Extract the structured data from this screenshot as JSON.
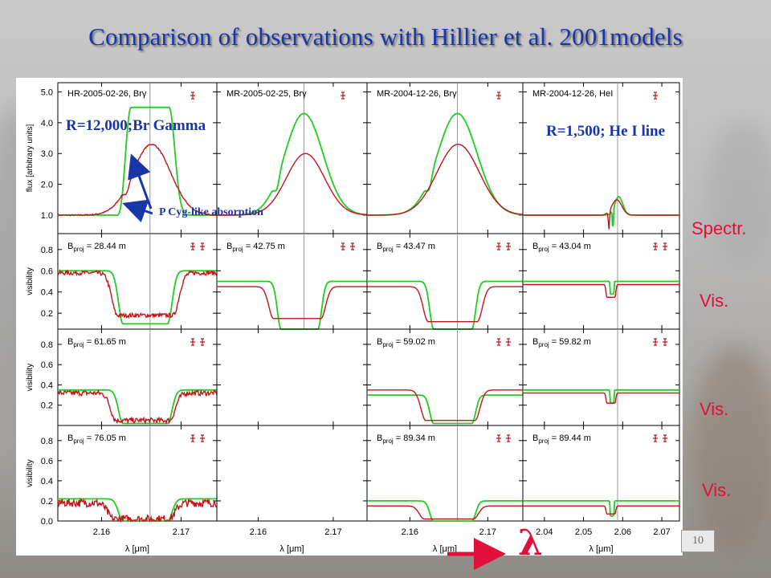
{
  "slide": {
    "title": "Comparison of observations with Hillier et al. 2001models",
    "slide_number": "10",
    "lambda_symbol": "λ",
    "side_labels": [
      "Spectr.",
      "Vis.",
      "Vis.",
      "Vis."
    ],
    "annotations": {
      "br_gamma": "R=12,000;Br Gamma",
      "he_line": "R=1,500; He I line",
      "p_cyg": "P Cyg-like absorption"
    },
    "colors": {
      "title": "#1a35a8",
      "accent": "#e0103a",
      "observed": "#c0151b",
      "model": "#22cc22"
    }
  },
  "chart_data": {
    "type": "line",
    "columns": [
      {
        "x_ticks": [
          "2.16",
          "2.17"
        ],
        "x_range": [
          2.1545,
          2.1745
        ],
        "line_center": 2.1661,
        "xlabel": "λ [μm]"
      },
      {
        "x_ticks": [
          "2.16",
          "2.17"
        ],
        "x_range": [
          2.1545,
          2.1745
        ],
        "line_center": 2.1661,
        "xlabel": "λ [μm]"
      },
      {
        "x_ticks": [
          "2.16",
          "2.17"
        ],
        "x_range": [
          2.1545,
          2.1745
        ],
        "line_center": 2.1661,
        "xlabel": "λ [μm]"
      },
      {
        "x_ticks": [
          "2.04",
          "2.05",
          "2.06",
          "2.07"
        ],
        "x_range": [
          2.0345,
          2.0745
        ],
        "line_center": 2.0587,
        "xlabel": "λ [μm]"
      }
    ],
    "rows": [
      {
        "ylabel": "flux [arbitrary units]",
        "ylim": [
          0.4,
          5.3
        ],
        "y_ticks": [
          "1.0",
          "2.0",
          "3.0",
          "4.0",
          "5.0"
        ]
      },
      {
        "ylabel": "visibility",
        "ylim": [
          0.05,
          0.95
        ],
        "y_ticks": [
          "0.2",
          "0.4",
          "0.6",
          "0.8"
        ]
      },
      {
        "ylabel": "visibility",
        "ylim": [
          0.0,
          0.95
        ],
        "y_ticks": [
          "0.2",
          "0.4",
          "0.6",
          "0.8"
        ]
      },
      {
        "ylabel": "visibility",
        "ylim": [
          0.0,
          0.95
        ],
        "y_ticks": [
          "0.0",
          "0.2",
          "0.4",
          "0.6",
          "0.8"
        ]
      }
    ],
    "panels": [
      {
        "row": 0,
        "col": 0,
        "label": "HR-2005-02-26, Brγ",
        "observed": {
          "continuum": 1.0,
          "peak": 3.3,
          "center": 2.1663,
          "width": 0.0028,
          "abs_depth": 0.25,
          "abs_center": 2.1632,
          "noise": 0.02
        },
        "model": {
          "continuum": 1.0,
          "peak": 4.5,
          "center": 2.1661,
          "width": 0.004,
          "abs_depth": 0.4,
          "abs_center": 2.1625,
          "flat": true
        }
      },
      {
        "row": 0,
        "col": 1,
        "label": "MR-2005-02-25, Brγ",
        "observed": {
          "continuum": 1.0,
          "peak": 3.0,
          "center": 2.1663,
          "width": 0.003
        },
        "model": {
          "continuum": 1.0,
          "peak": 4.3,
          "center": 2.1661,
          "width": 0.003,
          "abs_depth": 0.35,
          "abs_center": 2.1625
        }
      },
      {
        "row": 0,
        "col": 2,
        "label": "MR-2004-12-26, Brγ",
        "observed": {
          "continuum": 1.0,
          "peak": 3.3,
          "center": 2.1662,
          "width": 0.0032
        },
        "model": {
          "continuum": 1.0,
          "peak": 4.3,
          "center": 2.1661,
          "width": 0.003,
          "abs_depth": 0.35,
          "abs_center": 2.1625
        }
      },
      {
        "row": 0,
        "col": 3,
        "label": "MR-2004-12-26, HeI",
        "observed": {
          "continuum": 1.0,
          "peak": 1.5,
          "center": 2.0585,
          "width": 0.0015,
          "abs_depth": 0.6,
          "abs_center": 2.0565
        },
        "model": {
          "continuum": 1.0,
          "peak": 1.6,
          "center": 2.059,
          "width": 0.0012,
          "abs_depth": 0.7,
          "abs_center": 2.0575
        }
      },
      {
        "row": 1,
        "col": 0,
        "label": "B_proj = 28.44 m",
        "observed": {
          "continuum": 0.58,
          "min": 0.18,
          "center": 2.1655,
          "width": 0.005,
          "noise": 0.02
        },
        "model": {
          "continuum": 0.6,
          "min": 0.1,
          "center": 2.1655,
          "width": 0.004
        }
      },
      {
        "row": 1,
        "col": 1,
        "label": "B_proj = 42.75 m",
        "observed": {
          "continuum": 0.45,
          "min": 0.15,
          "center": 2.1652,
          "width": 0.0045
        },
        "model": {
          "continuum": 0.5,
          "min": 0.05,
          "center": 2.1655,
          "width": 0.0035
        }
      },
      {
        "row": 1,
        "col": 2,
        "label": "B_proj = 43.47 m",
        "observed": {
          "continuum": 0.45,
          "min": 0.12,
          "center": 2.1655,
          "width": 0.0045
        },
        "model": {
          "continuum": 0.5,
          "min": 0.05,
          "center": 2.1655,
          "width": 0.0035
        }
      },
      {
        "row": 1,
        "col": 3,
        "label": "B_proj = 43.04 m",
        "observed": {
          "continuum": 0.47,
          "min": 0.35,
          "center": 2.057,
          "width": 0.0015
        },
        "model": {
          "continuum": 0.5,
          "min": 0.38,
          "center": 2.0573,
          "width": 0.0006
        }
      },
      {
        "row": 2,
        "col": 0,
        "label": "B_proj = 61.65 m",
        "observed": {
          "continuum": 0.32,
          "min": 0.05,
          "center": 2.1652,
          "width": 0.0048,
          "noise": 0.025
        },
        "model": {
          "continuum": 0.35,
          "min": 0.02,
          "center": 2.1655,
          "width": 0.004
        }
      },
      {
        "row": 2,
        "col": 1,
        "label": ""
      },
      {
        "row": 2,
        "col": 2,
        "label": "B_proj = 59.02 m",
        "observed": {
          "continuum": 0.35,
          "min": 0.05,
          "center": 2.1652,
          "width": 0.0045
        },
        "model": {
          "continuum": 0.3,
          "min": 0.02,
          "center": 2.1655,
          "width": 0.0035
        }
      },
      {
        "row": 2,
        "col": 3,
        "label": "B_proj = 59.82 m",
        "observed": {
          "continuum": 0.32,
          "min": 0.22,
          "center": 2.057,
          "width": 0.0015
        },
        "model": {
          "continuum": 0.35,
          "min": 0.22,
          "center": 2.0573,
          "width": 0.0006
        }
      },
      {
        "row": 3,
        "col": 0,
        "label": "B_proj = 76.05 m",
        "observed": {
          "continuum": 0.18,
          "min": 0.02,
          "center": 2.165,
          "width": 0.005,
          "noise": 0.04
        },
        "model": {
          "continuum": 0.22,
          "min": 0.0,
          "center": 2.1655,
          "width": 0.004
        }
      },
      {
        "row": 3,
        "col": 1,
        "label": ""
      },
      {
        "row": 3,
        "col": 2,
        "label": "B_proj = 89.34 m",
        "observed": {
          "continuum": 0.15,
          "min": 0.02,
          "center": 2.165,
          "width": 0.0045
        },
        "model": {
          "continuum": 0.2,
          "min": 0.0,
          "center": 2.1655,
          "width": 0.0035
        }
      },
      {
        "row": 3,
        "col": 3,
        "label": "B_proj = 89.44 m",
        "observed": {
          "continuum": 0.15,
          "min": 0.07,
          "center": 2.057,
          "width": 0.0015
        },
        "model": {
          "continuum": 0.2,
          "min": 0.05,
          "center": 2.0573,
          "width": 0.0006
        }
      }
    ],
    "grid": false,
    "legend": "none"
  }
}
